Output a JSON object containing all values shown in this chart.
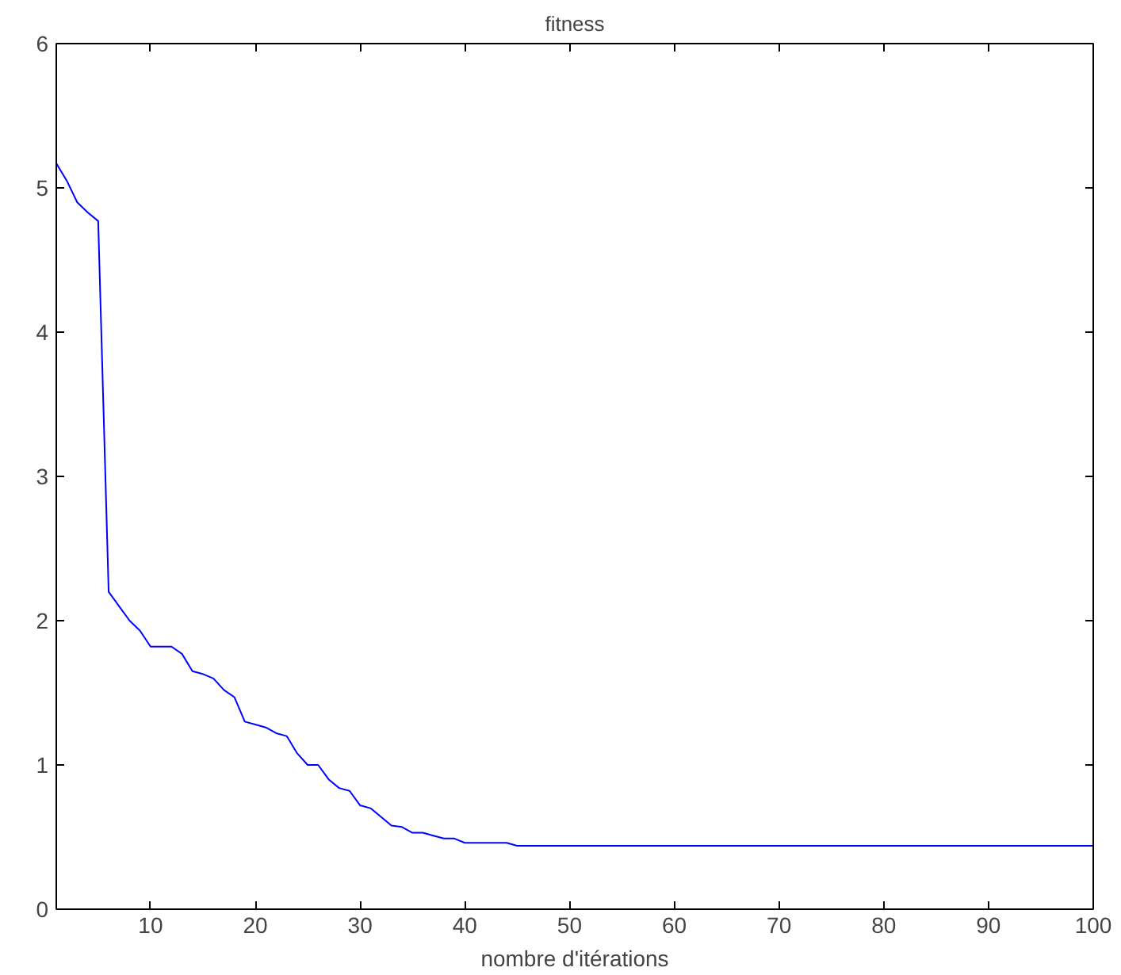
{
  "chart_data": {
    "type": "line",
    "title": "fitness",
    "xlabel": "nombre d'itérations",
    "x": [
      1,
      2,
      3,
      4,
      5,
      6,
      7,
      8,
      9,
      10,
      11,
      12,
      13,
      14,
      15,
      16,
      17,
      18,
      19,
      20,
      21,
      22,
      23,
      24,
      25,
      26,
      27,
      28,
      29,
      30,
      31,
      32,
      33,
      34,
      35,
      36,
      37,
      38,
      39,
      40,
      44,
      45,
      100
    ],
    "series": [
      {
        "color": "#0000ff",
        "values": [
          5.17,
          5.05,
          4.9,
          4.83,
          4.77,
          2.2,
          2.1,
          2.0,
          1.93,
          1.82,
          1.82,
          1.82,
          1.77,
          1.65,
          1.63,
          1.6,
          1.52,
          1.47,
          1.3,
          1.28,
          1.26,
          1.22,
          1.2,
          1.08,
          1.0,
          1.0,
          0.9,
          0.84,
          0.82,
          0.72,
          0.7,
          0.64,
          0.58,
          0.57,
          0.53,
          0.53,
          0.51,
          0.49,
          0.49,
          0.46,
          0.46,
          0.44,
          0.44
        ]
      }
    ],
    "xlim": [
      1,
      100
    ],
    "ylim": [
      0,
      6
    ],
    "xticks": [
      10,
      20,
      30,
      40,
      50,
      60,
      70,
      80,
      90,
      100
    ],
    "yticks": [
      0,
      1,
      2,
      3,
      4,
      5,
      6
    ],
    "grid": false,
    "marker": "none",
    "line_style": "solid"
  }
}
